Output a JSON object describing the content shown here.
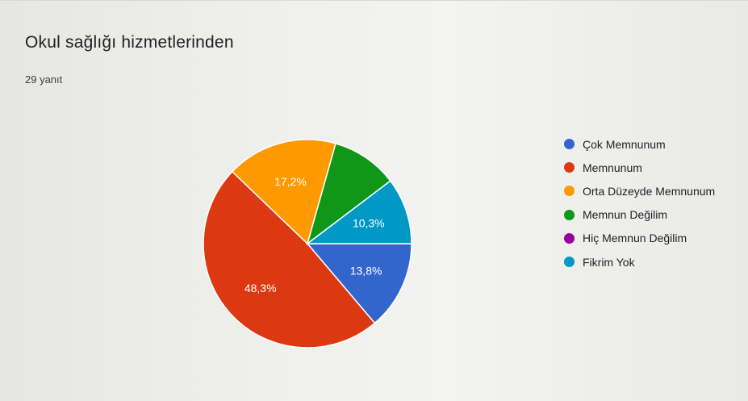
{
  "title": "Okul sağlığı hizmetlerinden",
  "response_count": "29 yanıt",
  "chart_data": {
    "type": "pie",
    "title": "Okul sağlığı hizmetlerinden",
    "subtitle": "29 yanıt",
    "legend_position": "right",
    "slices": [
      {
        "label": "Çok Memnunum",
        "value": 13.8,
        "display": "13,8%",
        "color": "#3366cc"
      },
      {
        "label": "Memnunum",
        "value": 48.3,
        "display": "48,3%",
        "color": "#dc3912"
      },
      {
        "label": "Orta Düzeyde Memnunum",
        "value": 17.2,
        "display": "17,2%",
        "color": "#ff9900"
      },
      {
        "label": "Memnun Değilim",
        "value": 10.3,
        "display": "",
        "color": "#109618"
      },
      {
        "label": "Hiç Memnun Değilim",
        "value": 0,
        "display": "",
        "color": "#990099"
      },
      {
        "label": "Fikrim Yok",
        "value": 10.3,
        "display": "10,3%",
        "color": "#0099c6"
      }
    ]
  }
}
